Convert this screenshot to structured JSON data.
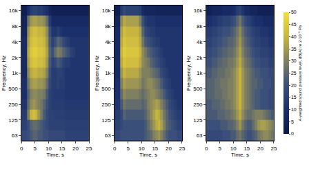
{
  "chart_data": [
    {
      "type": "heatmap",
      "log": "y",
      "xlabel": "Time, s",
      "ylabel": "Frequency, Hz",
      "xlim": [
        0,
        25
      ],
      "xticks": [
        0,
        5,
        10,
        15,
        20,
        25
      ],
      "ylim": [
        50,
        20000
      ],
      "yticks": [
        63,
        125,
        250,
        500,
        {
          "value": 1000,
          "label": "1k"
        },
        {
          "value": 2000,
          "label": "2k"
        },
        {
          "value": 4000,
          "label": "4k"
        },
        {
          "value": 8000,
          "label": "8k"
        },
        {
          "value": 16000,
          "label": "16k"
        }
      ],
      "x": [
        0.5,
        1.5,
        2.5,
        3.5,
        4.5,
        5.5,
        6.5,
        7.5,
        8.5,
        9.5,
        10.5,
        11.5,
        12.5,
        13.5,
        14.5,
        15.5,
        16.5,
        17.5,
        18.5,
        19.5,
        20.5,
        21.5,
        22.5,
        23.5,
        24.5
      ],
      "y": [
        63,
        100,
        160,
        250,
        400,
        630,
        1000,
        1600,
        2500,
        4000,
        6300,
        10000,
        16000
      ],
      "z": [
        [
          18,
          18,
          20,
          22,
          24,
          24,
          22,
          22,
          20,
          20,
          18,
          18,
          18,
          18,
          18,
          18,
          16,
          16,
          16,
          16,
          16,
          16,
          16,
          16,
          16
        ],
        [
          16,
          16,
          20,
          24,
          26,
          26,
          24,
          22,
          20,
          18,
          16,
          16,
          16,
          16,
          16,
          16,
          15,
          15,
          15,
          15,
          15,
          15,
          15,
          15,
          15
        ],
        [
          14,
          14,
          30,
          40,
          42,
          40,
          34,
          28,
          22,
          18,
          16,
          16,
          15,
          15,
          15,
          15,
          14,
          14,
          14,
          14,
          14,
          14,
          14,
          14,
          14
        ],
        [
          12,
          12,
          26,
          32,
          34,
          32,
          30,
          28,
          24,
          20,
          16,
          14,
          14,
          14,
          14,
          14,
          13,
          13,
          13,
          13,
          13,
          13,
          13,
          13,
          13
        ],
        [
          10,
          10,
          24,
          30,
          32,
          32,
          30,
          30,
          28,
          22,
          16,
          14,
          13,
          13,
          13,
          13,
          12,
          12,
          12,
          12,
          12,
          12,
          12,
          12,
          12
        ],
        [
          10,
          10,
          28,
          34,
          36,
          36,
          34,
          34,
          32,
          26,
          18,
          14,
          14,
          16,
          14,
          14,
          12,
          12,
          12,
          12,
          12,
          12,
          12,
          12,
          12
        ],
        [
          8,
          8,
          32,
          38,
          40,
          40,
          38,
          38,
          36,
          30,
          20,
          14,
          14,
          16,
          16,
          14,
          12,
          12,
          12,
          12,
          12,
          12,
          12,
          12,
          12
        ],
        [
          8,
          8,
          36,
          42,
          44,
          44,
          42,
          42,
          40,
          34,
          22,
          16,
          18,
          22,
          20,
          16,
          14,
          14,
          12,
          12,
          12,
          12,
          12,
          12,
          12
        ],
        [
          8,
          8,
          38,
          44,
          46,
          46,
          44,
          44,
          42,
          36,
          24,
          20,
          26,
          30,
          28,
          24,
          22,
          20,
          16,
          14,
          12,
          12,
          12,
          12,
          12
        ],
        [
          8,
          8,
          36,
          42,
          44,
          44,
          42,
          42,
          40,
          34,
          22,
          16,
          20,
          24,
          22,
          18,
          16,
          14,
          12,
          12,
          12,
          12,
          12,
          12,
          12
        ],
        [
          6,
          6,
          34,
          40,
          42,
          42,
          40,
          40,
          38,
          32,
          20,
          12,
          12,
          14,
          12,
          10,
          10,
          10,
          10,
          10,
          10,
          10,
          10,
          10,
          10
        ],
        [
          5,
          5,
          28,
          34,
          36,
          36,
          34,
          34,
          32,
          26,
          14,
          8,
          8,
          8,
          8,
          8,
          8,
          8,
          8,
          8,
          8,
          8,
          8,
          8,
          8
        ],
        [
          3,
          3,
          10,
          14,
          16,
          16,
          14,
          14,
          12,
          10,
          6,
          4,
          4,
          4,
          4,
          4,
          4,
          4,
          4,
          4,
          4,
          4,
          4,
          4,
          4
        ]
      ]
    },
    {
      "type": "heatmap",
      "log": "y",
      "xlabel": "Time, s",
      "ylabel": "Frequency, Hz",
      "xlim": [
        0,
        25
      ],
      "xticks": [
        0,
        5,
        10,
        15,
        20,
        25
      ],
      "ylim": [
        50,
        20000
      ],
      "yticks": [
        63,
        125,
        250,
        500,
        {
          "value": 1000,
          "label": "1k"
        },
        {
          "value": 2000,
          "label": "2k"
        },
        {
          "value": 4000,
          "label": "4k"
        },
        {
          "value": 8000,
          "label": "8k"
        },
        {
          "value": 16000,
          "label": "16k"
        }
      ],
      "x": [
        0.5,
        1.5,
        2.5,
        3.5,
        4.5,
        5.5,
        6.5,
        7.5,
        8.5,
        9.5,
        10.5,
        11.5,
        12.5,
        13.5,
        14.5,
        15.5,
        16.5,
        17.5,
        18.5,
        19.5,
        20.5,
        21.5,
        22.5,
        23.5,
        24.5
      ],
      "y": [
        63,
        100,
        160,
        250,
        400,
        630,
        1000,
        1600,
        2500,
        4000,
        6300,
        10000,
        16000
      ],
      "z": [
        [
          18,
          18,
          20,
          20,
          20,
          20,
          20,
          20,
          20,
          20,
          20,
          22,
          24,
          26,
          30,
          32,
          34,
          30,
          26,
          22,
          20,
          20,
          20,
          18,
          18
        ],
        [
          16,
          16,
          18,
          20,
          20,
          20,
          20,
          20,
          20,
          20,
          20,
          22,
          26,
          30,
          34,
          38,
          40,
          36,
          30,
          24,
          22,
          20,
          18,
          16,
          16
        ],
        [
          14,
          14,
          18,
          24,
          22,
          22,
          22,
          22,
          22,
          22,
          22,
          24,
          28,
          32,
          36,
          40,
          38,
          34,
          28,
          24,
          20,
          18,
          16,
          14,
          14
        ],
        [
          12,
          12,
          22,
          28,
          26,
          26,
          26,
          26,
          26,
          26,
          24,
          26,
          30,
          32,
          34,
          36,
          34,
          30,
          26,
          22,
          18,
          16,
          14,
          12,
          12
        ],
        [
          10,
          10,
          26,
          32,
          30,
          30,
          30,
          30,
          30,
          28,
          26,
          28,
          30,
          32,
          32,
          30,
          28,
          26,
          22,
          18,
          16,
          14,
          12,
          12,
          12
        ],
        [
          10,
          10,
          30,
          36,
          34,
          34,
          34,
          34,
          34,
          32,
          28,
          30,
          32,
          32,
          30,
          28,
          26,
          22,
          18,
          16,
          14,
          12,
          12,
          12,
          12
        ],
        [
          8,
          8,
          34,
          40,
          38,
          38,
          38,
          38,
          38,
          34,
          30,
          30,
          30,
          28,
          26,
          24,
          22,
          18,
          16,
          14,
          12,
          12,
          12,
          12,
          12
        ],
        [
          8,
          8,
          38,
          44,
          42,
          42,
          42,
          42,
          42,
          38,
          32,
          30,
          28,
          24,
          22,
          20,
          18,
          16,
          14,
          12,
          12,
          12,
          12,
          12,
          12
        ],
        [
          8,
          8,
          40,
          46,
          44,
          44,
          44,
          44,
          44,
          40,
          32,
          28,
          24,
          22,
          20,
          18,
          16,
          14,
          12,
          12,
          12,
          12,
          12,
          12,
          12
        ],
        [
          8,
          8,
          38,
          44,
          42,
          42,
          42,
          42,
          42,
          38,
          28,
          22,
          20,
          18,
          16,
          14,
          14,
          12,
          12,
          12,
          12,
          12,
          12,
          12,
          12
        ],
        [
          8,
          8,
          36,
          42,
          40,
          40,
          40,
          40,
          40,
          36,
          24,
          18,
          16,
          14,
          14,
          12,
          12,
          12,
          12,
          12,
          12,
          12,
          12,
          12,
          12
        ],
        [
          6,
          6,
          32,
          38,
          36,
          36,
          36,
          36,
          36,
          30,
          20,
          14,
          12,
          12,
          12,
          10,
          10,
          10,
          10,
          10,
          10,
          10,
          10,
          10,
          10
        ],
        [
          3,
          3,
          14,
          18,
          16,
          16,
          16,
          16,
          16,
          14,
          8,
          6,
          6,
          6,
          6,
          5,
          5,
          5,
          5,
          5,
          5,
          5,
          5,
          5,
          5
        ]
      ]
    },
    {
      "type": "heatmap",
      "log": "y",
      "xlabel": "Time, s",
      "ylabel": "Frequency, Hz",
      "xlim": [
        0,
        25
      ],
      "xticks": [
        0,
        5,
        10,
        15,
        20,
        25
      ],
      "ylim": [
        50,
        20000
      ],
      "yticks": [
        63,
        125,
        250,
        500,
        {
          "value": 1000,
          "label": "1k"
        },
        {
          "value": 2000,
          "label": "2k"
        },
        {
          "value": 4000,
          "label": "4k"
        },
        {
          "value": 8000,
          "label": "8k"
        },
        {
          "value": 16000,
          "label": "16k"
        }
      ],
      "x": [
        0.5,
        1.5,
        2.5,
        3.5,
        4.5,
        5.5,
        6.5,
        7.5,
        8.5,
        9.5,
        10.5,
        11.5,
        12.5,
        13.5,
        14.5,
        15.5,
        16.5,
        17.5,
        18.5,
        19.5,
        20.5,
        21.5,
        22.5,
        23.5,
        24.5
      ],
      "y": [
        63,
        100,
        160,
        250,
        400,
        630,
        1000,
        1600,
        2500,
        4000,
        6300,
        10000,
        16000
      ],
      "z": [
        [
          18,
          18,
          18,
          18,
          18,
          18,
          20,
          20,
          20,
          22,
          22,
          26,
          28,
          24,
          22,
          20,
          20,
          22,
          24,
          28,
          30,
          32,
          32,
          30,
          28
        ],
        [
          20,
          20,
          20,
          20,
          20,
          22,
          22,
          22,
          24,
          24,
          26,
          30,
          34,
          28,
          24,
          22,
          22,
          26,
          30,
          34,
          36,
          36,
          34,
          32,
          30
        ],
        [
          22,
          22,
          22,
          22,
          24,
          24,
          24,
          26,
          26,
          28,
          30,
          34,
          38,
          32,
          28,
          26,
          26,
          28,
          30,
          30,
          30,
          28,
          26,
          24,
          22
        ],
        [
          22,
          22,
          24,
          24,
          24,
          26,
          26,
          28,
          28,
          30,
          32,
          36,
          40,
          34,
          30,
          28,
          26,
          24,
          22,
          22,
          20,
          20,
          20,
          18,
          18
        ],
        [
          24,
          24,
          24,
          26,
          26,
          26,
          28,
          28,
          30,
          30,
          32,
          36,
          40,
          34,
          30,
          28,
          26,
          24,
          22,
          22,
          20,
          20,
          20,
          18,
          18
        ],
        [
          24,
          24,
          24,
          26,
          26,
          28,
          28,
          28,
          30,
          30,
          32,
          36,
          40,
          34,
          30,
          28,
          26,
          24,
          24,
          22,
          22,
          20,
          20,
          20,
          18
        ],
        [
          22,
          22,
          24,
          24,
          26,
          26,
          26,
          28,
          28,
          30,
          32,
          36,
          40,
          34,
          30,
          28,
          26,
          24,
          22,
          22,
          20,
          20,
          20,
          18,
          18
        ],
        [
          20,
          20,
          22,
          22,
          24,
          24,
          26,
          26,
          28,
          28,
          30,
          34,
          38,
          32,
          28,
          26,
          24,
          22,
          20,
          20,
          18,
          18,
          18,
          16,
          16
        ],
        [
          18,
          18,
          20,
          20,
          22,
          22,
          24,
          24,
          26,
          26,
          28,
          32,
          36,
          30,
          26,
          24,
          22,
          20,
          18,
          18,
          16,
          16,
          16,
          14,
          14
        ],
        [
          16,
          16,
          18,
          18,
          20,
          20,
          22,
          22,
          24,
          24,
          26,
          30,
          34,
          28,
          24,
          22,
          20,
          18,
          16,
          16,
          14,
          14,
          14,
          12,
          12
        ],
        [
          14,
          14,
          16,
          16,
          18,
          18,
          20,
          20,
          20,
          22,
          24,
          28,
          32,
          26,
          22,
          20,
          18,
          16,
          14,
          14,
          12,
          12,
          12,
          10,
          10
        ],
        [
          10,
          10,
          12,
          12,
          14,
          14,
          16,
          16,
          16,
          18,
          20,
          24,
          28,
          22,
          18,
          16,
          14,
          12,
          10,
          10,
          10,
          8,
          8,
          8,
          8
        ],
        [
          4,
          4,
          6,
          6,
          6,
          6,
          8,
          8,
          8,
          8,
          10,
          14,
          16,
          12,
          8,
          8,
          6,
          6,
          6,
          4,
          4,
          4,
          4,
          4,
          4
        ]
      ],
      "colorbar": {
        "title": "A-weighted sound pressure level, dB(A) re 2·10⁻⁵ Pa",
        "range": [
          0,
          50
        ],
        "ticks": [
          0,
          5,
          10,
          15,
          20,
          25,
          30,
          35,
          40,
          45,
          50
        ],
        "colors": [
          "#0b1846",
          "#1a2f6b",
          "#3a4f7a",
          "#7f8060",
          "#c8b540",
          "#f3df3a"
        ]
      }
    }
  ]
}
